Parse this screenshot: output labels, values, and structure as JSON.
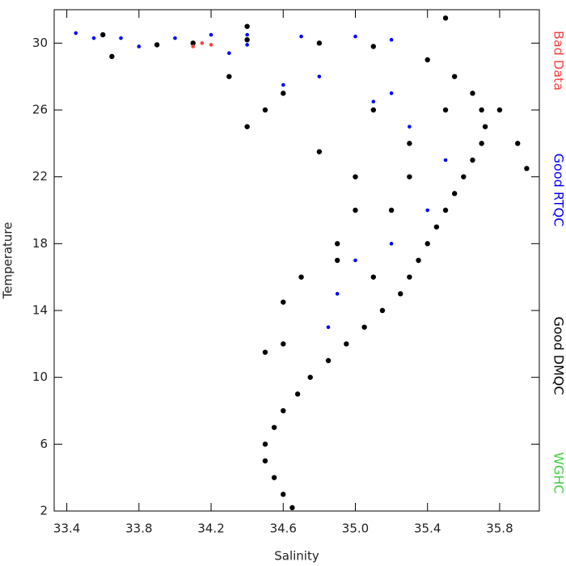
{
  "chart_data": {
    "type": "scatter",
    "xlabel": "Salinity",
    "ylabel": "Temperature",
    "xlim": [
      33.33,
      36.02
    ],
    "ylim": [
      2,
      32
    ],
    "xticks": [
      33.4,
      33.8,
      34.2,
      34.6,
      {
        "value": 35,
        "label": "35.0"
      },
      35.4,
      35.8
    ],
    "yticks": [
      2,
      6,
      10,
      14,
      18,
      22,
      26,
      30
    ],
    "legend": "right",
    "series": [
      {
        "name": "Bad Data",
        "color": "#ff4040",
        "x": [
          34.1,
          34.15,
          34.2
        ],
        "values": [
          29.8,
          30.0,
          29.9
        ]
      },
      {
        "name": "Good RTQC",
        "color": "#0000ff",
        "x": [
          33.45,
          33.55,
          33.7,
          33.8,
          34.0,
          34.2,
          34.4,
          34.7,
          35.0,
          35.2,
          34.3,
          34.8,
          35.2,
          35.3,
          35.5,
          35.4,
          35.2,
          35.0,
          34.9,
          35.1,
          34.6,
          34.85,
          34.4
        ],
        "values": [
          30.6,
          30.3,
          30.3,
          29.8,
          30.3,
          30.5,
          30.5,
          30.4,
          30.4,
          30.2,
          29.4,
          28,
          27,
          25,
          23,
          20,
          18,
          17,
          15,
          26.5,
          27.5,
          13,
          29.9
        ]
      },
      {
        "name": "Good DMQC",
        "color": "#000000",
        "x": [
          34.65,
          34.6,
          34.55,
          34.5,
          34.5,
          34.55,
          34.6,
          34.68,
          34.75,
          34.85,
          34.95,
          35.05,
          35.15,
          35.25,
          35.3,
          35.35,
          35.4,
          35.45,
          35.5,
          35.55,
          35.6,
          35.65,
          35.7,
          35.72,
          35.7,
          35.65,
          35.55,
          35.4,
          35.1,
          34.8,
          34.4,
          34.1,
          33.9,
          34.4,
          34.5,
          34.3,
          34.6,
          35.0,
          35.0,
          34.9,
          34.7,
          34.6,
          34.5,
          34.6,
          35.2,
          35.3,
          35.5,
          35.9,
          35.95,
          35.8,
          35.1,
          35.3,
          34.8,
          35.5,
          33.6,
          33.65,
          34.4,
          34.9,
          35.1
        ],
        "values": [
          2.2,
          3,
          4,
          5,
          6,
          7,
          8,
          9,
          10,
          11,
          12,
          13,
          14,
          15,
          16,
          17,
          18,
          19,
          20,
          21,
          22,
          23,
          24,
          25,
          26,
          27,
          28,
          29,
          29.8,
          30,
          30.2,
          30,
          29.9,
          25,
          26,
          28,
          27,
          22,
          20,
          18,
          16,
          14.5,
          11.5,
          12,
          20,
          24,
          26,
          24,
          22.5,
          26,
          26,
          22,
          23.5,
          31.5,
          30.5,
          29.2,
          31,
          17,
          16
        ]
      },
      {
        "name": "WGHC",
        "color": "#40d040",
        "x": [],
        "values": []
      }
    ]
  }
}
